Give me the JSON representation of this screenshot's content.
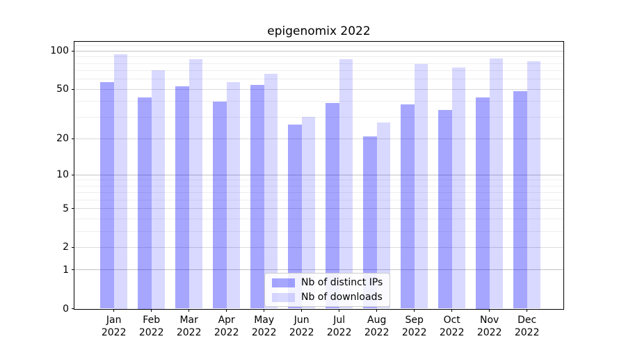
{
  "chart_data": {
    "type": "bar",
    "title": "epigenomix 2022",
    "categories": [
      "Jan 2022",
      "Feb 2022",
      "Mar 2022",
      "Apr 2022",
      "May 2022",
      "Jun 2022",
      "Jul 2022",
      "Aug 2022",
      "Sep 2022",
      "Oct 2022",
      "Nov 2022",
      "Dec 2022"
    ],
    "x_tick_labels": [
      [
        "Jan",
        "2022"
      ],
      [
        "Feb",
        "2022"
      ],
      [
        "Mar",
        "2022"
      ],
      [
        "Apr",
        "2022"
      ],
      [
        "May",
        "2022"
      ],
      [
        "Jun",
        "2022"
      ],
      [
        "Jul",
        "2022"
      ],
      [
        "Aug",
        "2022"
      ],
      [
        "Sep",
        "2022"
      ],
      [
        "Oct",
        "2022"
      ],
      [
        "Nov",
        "2022"
      ],
      [
        "Dec",
        "2022"
      ]
    ],
    "series": [
      {
        "name": "Nb of distinct IPs",
        "values": [
          57,
          43,
          53,
          40,
          54,
          26,
          39,
          21,
          38,
          34,
          43,
          48
        ],
        "color": "rgba(0,0,255,0.35)",
        "color_hex": "#a6a6ff"
      },
      {
        "name": "Nb of downloads",
        "values": [
          95,
          71,
          86,
          57,
          66,
          30,
          86,
          27,
          79,
          74,
          87,
          83
        ],
        "color": "rgba(0,0,255,0.15)",
        "color_hex": "#d9d9ff"
      }
    ],
    "yscale": "log1p",
    "ylim": [
      0,
      118
    ],
    "y_ticks": [
      0,
      1,
      2,
      5,
      10,
      20,
      50,
      100
    ],
    "y_tick_labels": [
      "0",
      "1",
      "2",
      "5",
      "10",
      "20",
      "50",
      "100"
    ],
    "grid": {
      "major": [
        1,
        10,
        100
      ],
      "mid": [
        2,
        5,
        20,
        50
      ],
      "minor": [
        3,
        4,
        6,
        7,
        8,
        9,
        30,
        40,
        60,
        70,
        80,
        90,
        110
      ],
      "major_color": "#c3c3c3",
      "mid_color": "#dadada",
      "minor_color": "#eeeeee"
    },
    "legend_position": "lower center"
  }
}
